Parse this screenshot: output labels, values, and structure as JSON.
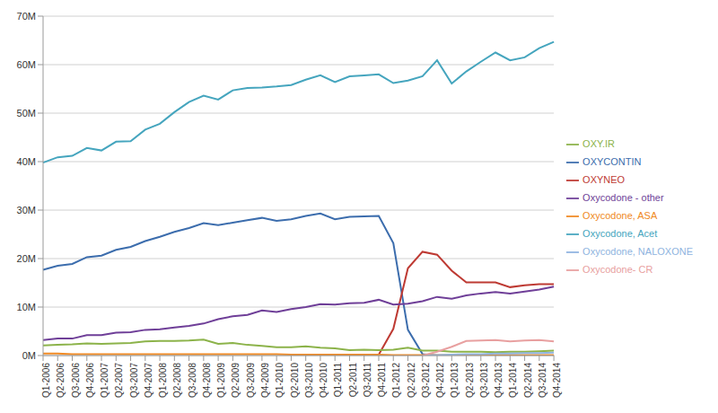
{
  "chart_data": {
    "type": "line",
    "categories": [
      "Q1-2006",
      "Q2-2006",
      "Q3-2006",
      "Q4-2006",
      "Q1-2007",
      "Q2-2007",
      "Q3-2007",
      "Q4-2007",
      "Q1-2008",
      "Q2-2008",
      "Q3-2008",
      "Q4-2008",
      "Q1-2009",
      "Q2-2009",
      "Q3-2009",
      "Q4-2009",
      "Q1-2010",
      "Q2-2010",
      "Q3-2010",
      "Q4-2010",
      "Q1-2011",
      "Q2-2011",
      "Q3-2011",
      "Q4-2011",
      "Q1-2012",
      "Q2-2012",
      "Q3-2012",
      "Q4-2012",
      "Q1-2013",
      "Q2-2013",
      "Q3-2013",
      "Q4-2013",
      "Q1-2014",
      "Q2-2014",
      "Q3-2014",
      "Q4-2014"
    ],
    "series": [
      {
        "name": "OXYCONTIN",
        "color": "#3c6dad",
        "values": [
          17.7,
          18.5,
          18.9,
          20.3,
          20.6,
          21.8,
          22.4,
          23.6,
          24.5,
          25.5,
          26.3,
          27.3,
          26.9,
          27.4,
          27.9,
          28.4,
          27.8,
          28.1,
          28.8,
          29.3,
          28.1,
          28.6,
          28.7,
          28.8,
          23.2,
          5.3,
          0.3,
          0,
          0,
          0,
          0,
          0,
          0,
          0,
          0,
          0
        ]
      },
      {
        "name": "OXYNEO",
        "color": "#be3a33",
        "values": [
          null,
          null,
          null,
          null,
          null,
          null,
          null,
          null,
          null,
          null,
          null,
          null,
          null,
          null,
          null,
          null,
          null,
          null,
          null,
          null,
          null,
          null,
          null,
          0.2,
          5.5,
          18.0,
          21.4,
          20.8,
          17.5,
          15.1,
          15.1,
          15.1,
          14.1,
          14.5,
          14.7,
          14.7
        ]
      },
      {
        "name": "OXY.IR",
        "color": "#8cb34a",
        "values": [
          2.1,
          2.2,
          2.3,
          2.5,
          2.4,
          2.5,
          2.6,
          2.9,
          3.0,
          3.0,
          3.1,
          3.3,
          2.4,
          2.6,
          2.2,
          2.0,
          1.7,
          1.7,
          1.9,
          1.6,
          1.5,
          1.1,
          1.2,
          1.1,
          1.2,
          1.6,
          1.0,
          1.0,
          0.8,
          0.8,
          0.8,
          0.7,
          0.8,
          0.8,
          0.9,
          1.0
        ]
      },
      {
        "name": "Oxycodone - other",
        "color": "#6f3f98",
        "values": [
          3.2,
          3.5,
          3.5,
          4.2,
          4.2,
          4.7,
          4.8,
          5.3,
          5.4,
          5.8,
          6.1,
          6.6,
          7.5,
          8.1,
          8.4,
          9.3,
          9.0,
          9.6,
          10.0,
          10.6,
          10.5,
          10.8,
          10.9,
          11.5,
          10.5,
          10.7,
          11.2,
          12.1,
          11.7,
          12.4,
          12.8,
          13.1,
          12.8,
          13.2,
          13.6,
          14.2
        ]
      },
      {
        "name": "Oxycodone, Acet",
        "color": "#45a5be",
        "values": [
          39.8,
          40.9,
          41.2,
          42.8,
          42.3,
          44.1,
          44.2,
          46.6,
          47.8,
          50.2,
          52.3,
          53.6,
          52.8,
          54.7,
          55.2,
          55.3,
          55.5,
          55.8,
          56.9,
          57.8,
          56.4,
          57.6,
          57.8,
          58.0,
          56.2,
          56.7,
          57.6,
          60.9,
          56.1,
          58.6,
          60.6,
          62.5,
          60.9,
          61.5,
          63.4,
          64.7
        ]
      },
      {
        "name": "Oxycodone, ASA",
        "color": "#f08a24",
        "values": [
          0.4,
          0.4,
          0.3,
          0.3,
          0.3,
          0.3,
          0.3,
          0.3,
          0.3,
          0.3,
          0.3,
          0.3,
          0.3,
          0.3,
          0.3,
          0.3,
          0.3,
          0.2,
          0.2,
          0.2,
          0.2,
          0.2,
          0.2,
          0.2,
          0.1,
          0.1,
          0.1,
          0.1,
          0.1,
          0.1,
          0.1,
          0.1,
          0.1,
          0.1,
          0.1,
          0.1
        ]
      },
      {
        "name": "Oxycodone, NALOXONE",
        "color": "#8fb4e0",
        "values": [
          null,
          null,
          null,
          null,
          null,
          null,
          null,
          null,
          null,
          null,
          null,
          null,
          null,
          null,
          null,
          null,
          null,
          null,
          null,
          null,
          null,
          null,
          null,
          null,
          null,
          null,
          0.0,
          0.1,
          0.2,
          0.3,
          0.3,
          0.4,
          0.4,
          0.5,
          0.5,
          0.6
        ]
      },
      {
        "name": "Oxycodone- CR",
        "color": "#e8a0a0",
        "values": [
          null,
          null,
          null,
          null,
          null,
          null,
          null,
          null,
          null,
          null,
          null,
          null,
          null,
          null,
          null,
          null,
          null,
          null,
          null,
          null,
          null,
          null,
          null,
          null,
          null,
          null,
          0,
          0.8,
          1.8,
          3.0,
          3.1,
          3.2,
          2.9,
          3.1,
          3.2,
          2.9
        ]
      }
    ],
    "ylim": [
      0,
      70
    ],
    "yticks": [
      {
        "value": 0,
        "label": "0M"
      },
      {
        "value": 10,
        "label": "10M"
      },
      {
        "value": 20,
        "label": "20M"
      },
      {
        "value": 30,
        "label": "30M"
      },
      {
        "value": 40,
        "label": "40M"
      },
      {
        "value": 50,
        "label": "50M"
      },
      {
        "value": 60,
        "label": "60M"
      },
      {
        "value": 70,
        "label": "70M"
      }
    ],
    "grid": true,
    "legend": "right"
  }
}
